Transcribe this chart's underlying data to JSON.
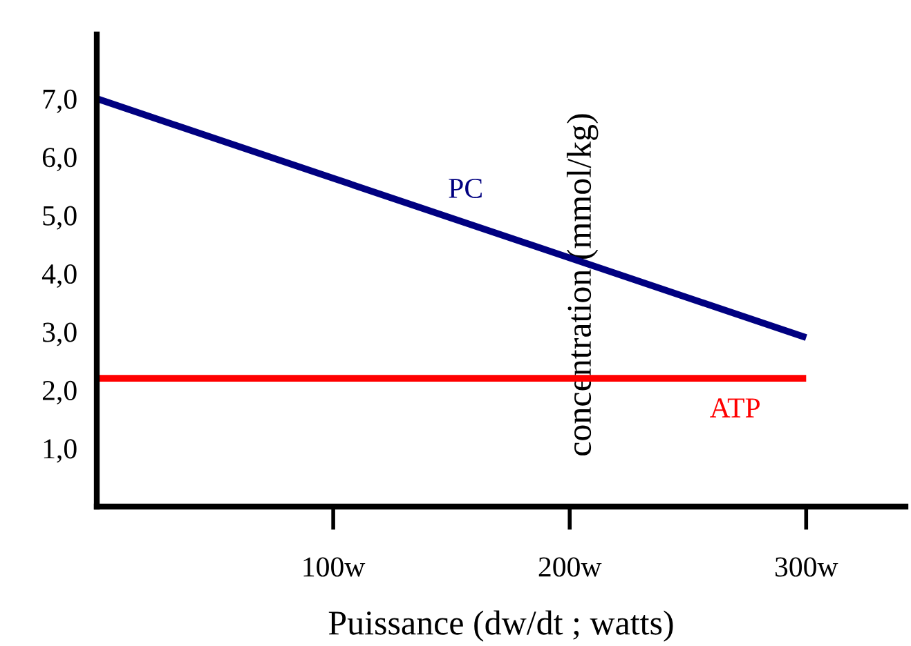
{
  "chart_data": {
    "type": "line",
    "xlabel": "Puissance (dw/dt ; watts)",
    "ylabel": "concentration (mmol/kg)",
    "xlim": [
      0,
      342
    ],
    "xticks": [
      {
        "value": 100,
        "label": "100w"
      },
      {
        "value": 200,
        "label": "200w"
      },
      {
        "value": 300,
        "label": "300w"
      }
    ],
    "ylim": [
      0,
      8.1
    ],
    "yticks": [
      {
        "value": 1,
        "label": "1,0"
      },
      {
        "value": 2,
        "label": "2,0"
      },
      {
        "value": 3,
        "label": "3,0"
      },
      {
        "value": 4,
        "label": "4,0"
      },
      {
        "value": 5,
        "label": "5,0"
      },
      {
        "value": 6,
        "label": "6,0"
      },
      {
        "value": 7,
        "label": "7,0"
      }
    ],
    "x": [
      0,
      300
    ],
    "grid": false,
    "legend": false,
    "marker": "none",
    "line_style": "solid",
    "series": [
      {
        "name": "PC",
        "color": "#000080",
        "values": [
          7.0,
          2.9
        ]
      },
      {
        "name": "ATP",
        "color": "#ff0000",
        "values": [
          2.2,
          2.2
        ]
      }
    ]
  }
}
